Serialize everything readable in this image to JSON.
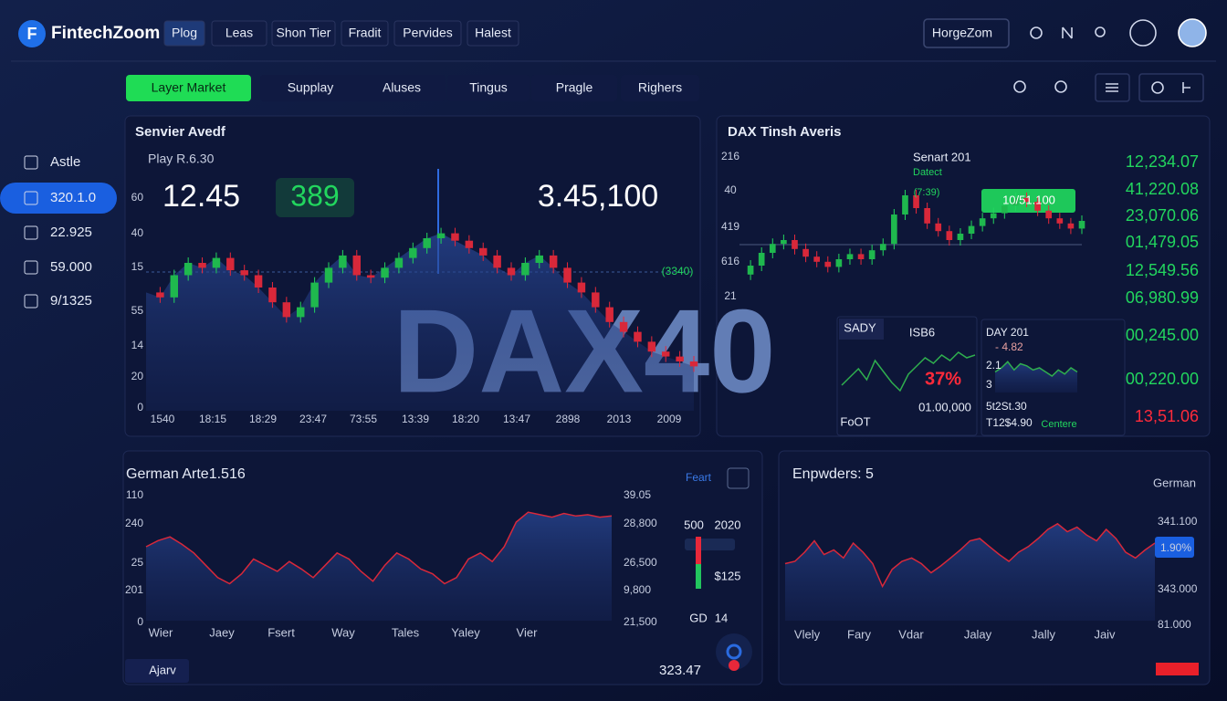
{
  "header": {
    "logo": "FintechZoom",
    "nav": [
      "Plog",
      "Leas",
      "Shon Tier",
      "Fradit",
      "Pervides",
      "Halest"
    ],
    "account": "HorgeZom"
  },
  "toolbar": {
    "tabs": [
      "Layer Market",
      "Supplay",
      "Aluses",
      "Tingus",
      "Pragle",
      "Righers"
    ]
  },
  "sidebar": {
    "items": [
      "Astle",
      "320.1.0",
      "22.925",
      "59.000",
      "9/1325"
    ]
  },
  "main_chart": {
    "title": "Senvier Avedf",
    "subtitle": "Play R.6.30",
    "stats": [
      "12.45",
      "389",
      "3.45,100"
    ],
    "badge": "(3340)",
    "watermark": "DAX40",
    "y_labels": [
      "60",
      "40",
      "15",
      "55",
      "14",
      "20",
      "0"
    ],
    "x_labels": [
      "1540",
      "18:15",
      "18:29",
      "23:47",
      "73:55",
      "13:39",
      "18:20",
      "13:47",
      "2898",
      "2013",
      "2009"
    ],
    "ylim": [
      0,
      100
    ],
    "values": [
      48,
      46,
      55,
      60,
      58,
      62,
      57,
      55,
      50,
      44,
      38,
      42,
      52,
      58,
      63,
      55,
      54,
      58,
      62,
      66,
      70,
      72,
      69,
      66,
      63,
      58,
      55,
      60,
      63,
      58,
      52,
      48,
      42,
      36,
      32,
      28,
      24,
      22,
      20,
      18
    ]
  },
  "dax_chart": {
    "title": "DAX Tinsh Averis",
    "y_labels": [
      "216",
      "40",
      "419",
      "616",
      "21"
    ],
    "legend": "Senart 201",
    "legend_sub": "Datect",
    "marker": "(7:39)",
    "badge": "10/51.100",
    "ylim": [
      0,
      100
    ],
    "values": [
      28,
      35,
      45,
      52,
      55,
      48,
      42,
      38,
      34,
      40,
      44,
      40,
      47,
      52,
      75,
      90,
      80,
      68,
      62,
      55,
      60,
      66,
      72,
      76,
      82,
      88,
      85,
      78,
      72,
      68,
      64,
      70
    ],
    "quotes": [
      "12,234.07",
      "41,220.08",
      "23,070.06",
      "01,479.05",
      "12,549.56",
      "06,980.99",
      "00,245.00",
      "00,220.00",
      "13,51.06"
    ],
    "mini": [
      {
        "title": "SADY",
        "label": "ISB6",
        "change": "37%",
        "value": "01.00,000",
        "footer": "FoOT",
        "ylim": [
          0,
          100
        ],
        "values": [
          30,
          45,
          60,
          40,
          75,
          55,
          35,
          20,
          50,
          65,
          80,
          70,
          85,
          75,
          90,
          80,
          85
        ]
      },
      {
        "title": "DAY 201",
        "labels": [
          "- 4.82",
          "2.1",
          "3",
          "5t2St.30",
          "T12$4.90"
        ],
        "footer": "Centere",
        "ylim": [
          0,
          100
        ],
        "values": [
          50,
          60,
          75,
          55,
          70,
          65,
          55,
          60,
          50,
          40,
          55,
          45,
          60,
          50
        ]
      }
    ]
  },
  "german_chart": {
    "title": "German Arte1.516",
    "link": "Feart",
    "y_left": [
      "110",
      "240",
      "25",
      "201",
      "0"
    ],
    "y_right": [
      "39.05",
      "28,800",
      "26,500",
      "9,800",
      "21,500"
    ],
    "x_labels": [
      "Wier",
      "Jaey",
      "Fsert",
      "Way",
      "Tales",
      "Yaley",
      "Vier"
    ],
    "side": [
      "500",
      "2020",
      "$125",
      "GD",
      "14"
    ],
    "total": "323.47",
    "button": "Ajarv",
    "ylim": [
      0,
      100
    ],
    "values": [
      60,
      65,
      68,
      62,
      55,
      45,
      35,
      30,
      38,
      50,
      45,
      40,
      48,
      42,
      35,
      45,
      55,
      50,
      40,
      32,
      45,
      55,
      50,
      42,
      38,
      30,
      35,
      50,
      55,
      48,
      60,
      80,
      88,
      86,
      84,
      87,
      85,
      86,
      84,
      85
    ]
  },
  "enpwders_chart": {
    "title": "Enpwders: 5",
    "label": "German",
    "y_right": [
      "341.100",
      "1.90%",
      "343.000",
      "81.000"
    ],
    "x_labels": [
      "Vlely",
      "Fary",
      "Vdar",
      "Jalay",
      "Jally",
      "Jaiv"
    ],
    "ylim": [
      0,
      100
    ],
    "values": [
      50,
      52,
      60,
      70,
      58,
      62,
      55,
      68,
      60,
      50,
      30,
      45,
      52,
      55,
      50,
      42,
      48,
      55,
      62,
      70,
      72,
      65,
      58,
      52,
      60,
      65,
      72,
      80,
      85,
      78,
      82,
      75,
      70,
      80,
      72,
      60,
      55,
      62,
      68
    ]
  }
}
